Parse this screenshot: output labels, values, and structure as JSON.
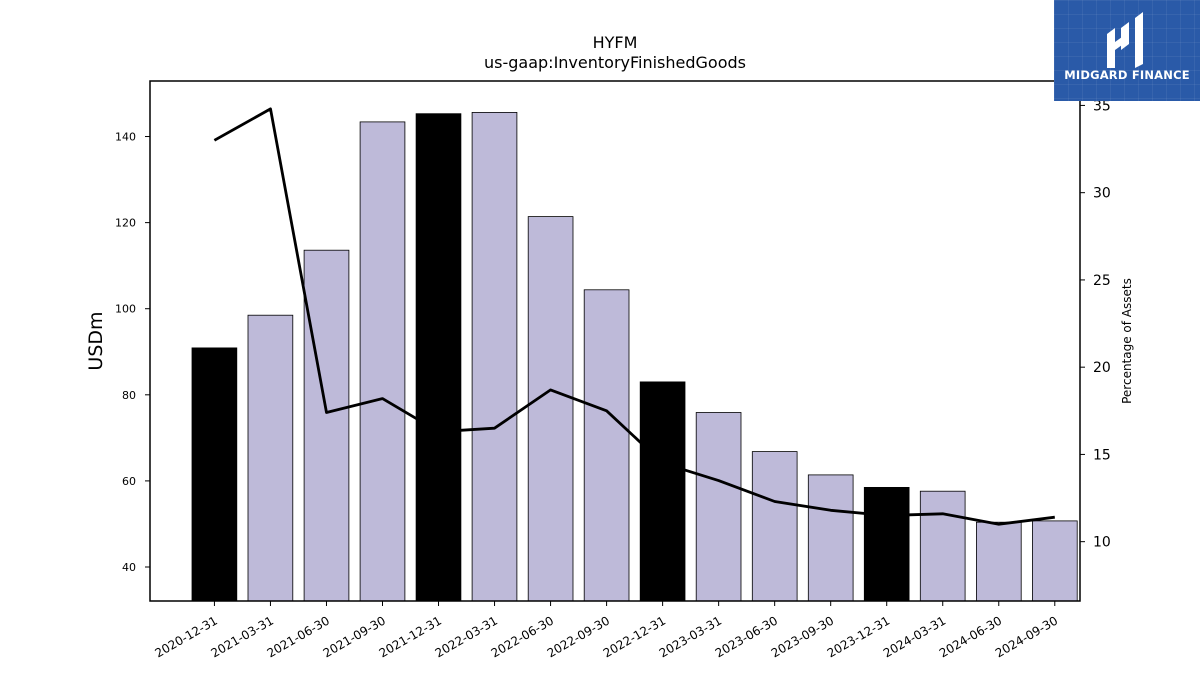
{
  "chart_data": {
    "type": "bar",
    "title": "HYFM",
    "subtitle": "us-gaap:InventoryFinishedGoods",
    "ylabel": "USDm",
    "y2label": "Percentage of Assets",
    "categories": [
      "2020-12-31",
      "2021-03-31",
      "2021-06-30",
      "2021-09-30",
      "2021-12-31",
      "2022-03-31",
      "2022-06-30",
      "2022-09-30",
      "2022-12-31",
      "2023-03-31",
      "2023-06-30",
      "2023-09-30",
      "2023-12-31",
      "2024-03-31",
      "2024-06-30",
      "2024-09-30"
    ],
    "series": [
      {
        "type": "bar",
        "values": [
          90.9,
          98.5,
          113.6,
          143.4,
          145.3,
          145.6,
          121.4,
          104.4,
          83.0,
          75.9,
          66.8,
          61.4,
          58.5,
          57.6,
          50.4,
          50.7
        ],
        "colors": [
          "#000000",
          "#bebad9",
          "#bebad9",
          "#bebad9",
          "#000000",
          "#bebad9",
          "#bebad9",
          "#bebad9",
          "#000000",
          "#bebad9",
          "#bebad9",
          "#bebad9",
          "#000000",
          "#bebad9",
          "#bebad9",
          "#bebad9"
        ]
      },
      {
        "type": "line",
        "axis": "right",
        "color": "#000000",
        "values": [
          33.0,
          34.8,
          17.4,
          18.2,
          16.3,
          16.5,
          18.7,
          17.5,
          14.5,
          13.5,
          12.3,
          11.8,
          11.5,
          11.6,
          11.0,
          11.4
        ]
      }
    ],
    "ylim": [
      32.1,
      152.9
    ],
    "y2lim": [
      6.6,
      36.4
    ],
    "yticks": [
      40,
      60,
      80,
      100,
      120,
      140
    ],
    "y2ticks": [
      10,
      15,
      20,
      25,
      30,
      35
    ],
    "grid": false
  },
  "logo": {
    "text": "MIDGARD FINANCE",
    "background": "#2a5aa8"
  }
}
